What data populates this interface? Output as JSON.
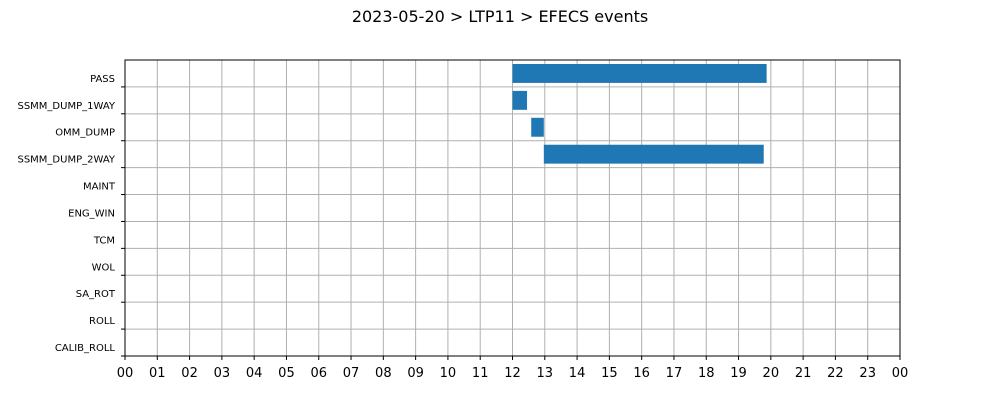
{
  "chart_data": {
    "type": "bar",
    "orientation": "horizontal",
    "title": "2023-05-20 > LTP11 > EFECS events",
    "xlabel": "",
    "ylabel": "",
    "xlim": [
      0,
      24
    ],
    "x_ticks": [
      "00",
      "01",
      "02",
      "03",
      "04",
      "05",
      "06",
      "07",
      "08",
      "09",
      "10",
      "11",
      "12",
      "13",
      "14",
      "15",
      "16",
      "17",
      "18",
      "19",
      "20",
      "21",
      "22",
      "23",
      "00"
    ],
    "categories": [
      "PASS",
      "SSMM_DUMP_1WAY",
      "OMM_DUMP",
      "SSMM_DUMP_2WAY",
      "MAINT",
      "ENG_WIN",
      "TCM",
      "WOL",
      "SA_ROT",
      "ROLL",
      "CALIB_ROLL"
    ],
    "intervals": [
      {
        "category": "PASS",
        "start": 12.0,
        "end": 19.87
      },
      {
        "category": "SSMM_DUMP_1WAY",
        "start": 12.0,
        "end": 12.45
      },
      {
        "category": "OMM_DUMP",
        "start": 12.58,
        "end": 12.97
      },
      {
        "category": "SSMM_DUMP_2WAY",
        "start": 12.97,
        "end": 19.78
      }
    ],
    "bar_color": "#1f77b4",
    "grid": true,
    "legend": "none"
  }
}
